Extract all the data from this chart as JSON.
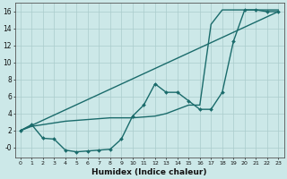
{
  "xlabel": "Humidex (Indice chaleur)",
  "bg_color": "#cce8e8",
  "grid_color": "#aacccc",
  "line_color": "#1a6b6b",
  "xlim": [
    -0.5,
    23.5
  ],
  "ylim": [
    -1.2,
    17
  ],
  "xticks": [
    0,
    1,
    2,
    3,
    4,
    5,
    6,
    7,
    8,
    9,
    10,
    11,
    12,
    13,
    14,
    15,
    16,
    17,
    18,
    19,
    20,
    21,
    22,
    23
  ],
  "yticks": [
    0,
    2,
    4,
    6,
    8,
    10,
    12,
    14,
    16
  ],
  "ytick_labels": [
    "-0",
    "2",
    "4",
    "6",
    "8",
    "10",
    "12",
    "14",
    "16"
  ],
  "line1_x": [
    0,
    1,
    2,
    3,
    4,
    5,
    6,
    7,
    8,
    9,
    10,
    11,
    12,
    13,
    14,
    15,
    16,
    17,
    18,
    19,
    20,
    21,
    22,
    23
  ],
  "line1_y": [
    2.0,
    2.7,
    1.1,
    1.0,
    -0.3,
    -0.5,
    -0.4,
    -0.3,
    -0.2,
    1.0,
    3.7,
    5.0,
    7.5,
    6.5,
    6.5,
    5.5,
    4.5,
    4.5,
    6.5,
    12.5,
    16.2,
    16.2,
    16.0,
    16.0
  ],
  "line2_x": [
    0,
    1,
    2,
    3,
    4,
    5,
    6,
    7,
    8,
    9,
    10,
    11,
    12,
    13,
    14,
    15,
    16,
    17,
    18,
    19,
    20,
    21,
    22,
    23
  ],
  "line2_y": [
    2.0,
    2.5,
    2.7,
    2.9,
    3.1,
    3.2,
    3.3,
    3.4,
    3.5,
    3.5,
    3.5,
    3.6,
    3.7,
    4.0,
    4.5,
    5.0,
    5.0,
    14.5,
    16.2,
    16.2,
    16.2,
    16.2,
    16.2,
    16.2
  ],
  "line3_x": [
    0,
    23
  ],
  "line3_y": [
    2.0,
    16.0
  ]
}
